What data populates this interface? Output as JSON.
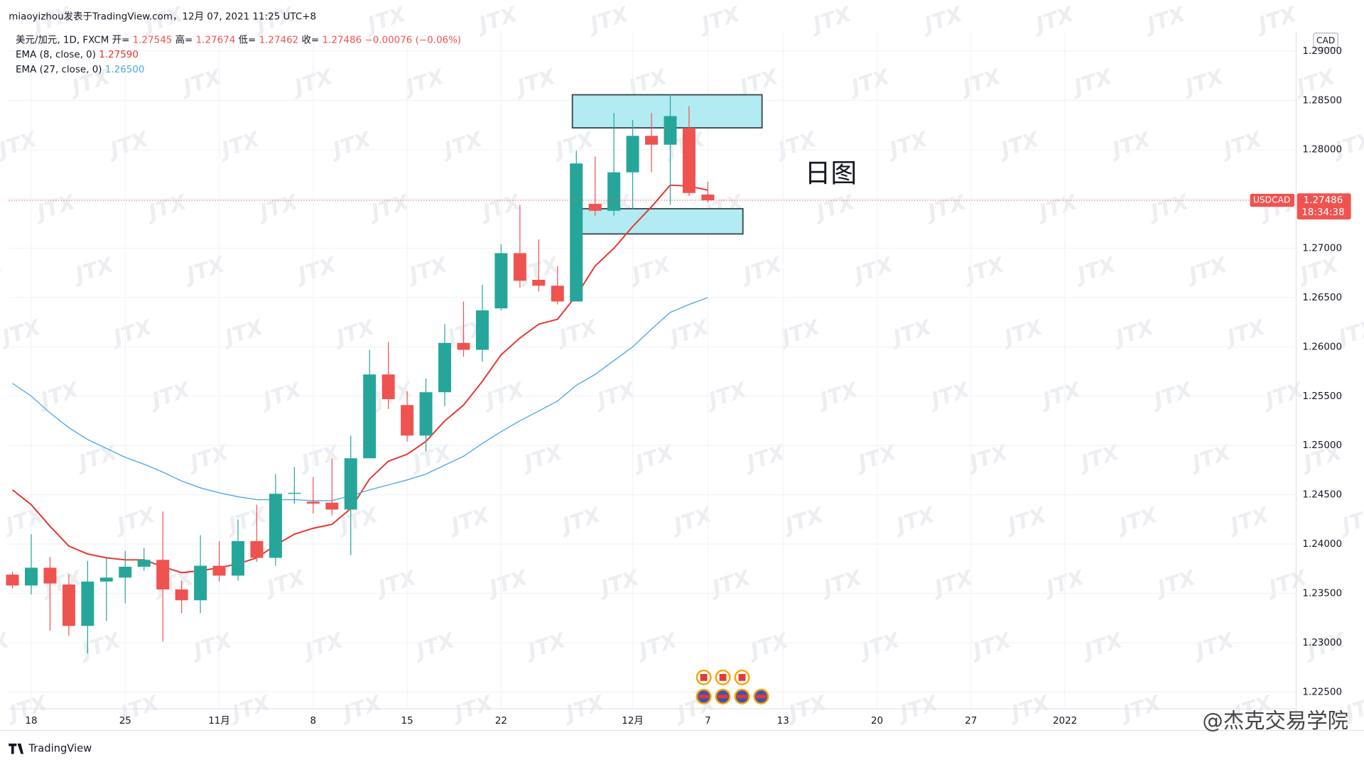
{
  "header": {
    "text": "miaoyizhou发表于TradingView.com，12月 07, 2021 11:25 UTC+8"
  },
  "chart_data": {
    "type": "candlestick",
    "symbol": "美元/加元, 1D, FXCM",
    "legend_labels": {
      "open": "开=",
      "high": "高=",
      "low": "低=",
      "close": "收="
    },
    "change": "−0.00076 (−0.06%)",
    "currency": "CAD",
    "price_label": {
      "symbol": "USDCAD",
      "countdown": "18:34:38"
    },
    "annotation": "日图",
    "up_color": "#26a69a",
    "down_color": "#ef5350",
    "open": [
      1.2369,
      1.2358,
      1.2376,
      1.2359,
      1.2317,
      1.2362,
      1.2366,
      1.2377,
      1.2384,
      1.2354,
      1.2343,
      1.2378,
      1.2368,
      1.2403,
      1.2386,
      1.2451,
      1.2443,
      1.2442,
      1.2435,
      1.2487,
      1.2572,
      1.2541,
      1.251,
      1.2554,
      1.2604,
      1.2597,
      1.2639,
      1.2695,
      1.2668,
      1.2662,
      1.2646,
      1.2745,
      1.2738,
      1.2777,
      1.2814,
      1.2805,
      1.2822,
      1.27545
    ],
    "high": [
      1.2372,
      1.241,
      1.2387,
      1.2369,
      1.2383,
      1.2387,
      1.2393,
      1.2396,
      1.2433,
      1.2363,
      1.2409,
      1.2403,
      1.2425,
      1.244,
      1.2471,
      1.2478,
      1.2468,
      1.2487,
      1.251,
      1.2597,
      1.2605,
      1.2555,
      1.2568,
      1.2623,
      1.2646,
      1.2663,
      1.2704,
      1.2744,
      1.2709,
      1.2682,
      1.2799,
      1.2793,
      1.2837,
      1.283,
      1.2837,
      1.2856,
      1.2844,
      1.27674
    ],
    "low": [
      1.2355,
      1.2349,
      1.2312,
      1.2307,
      1.2289,
      1.2322,
      1.234,
      1.2373,
      1.2301,
      1.233,
      1.233,
      1.2362,
      1.2363,
      1.2382,
      1.2378,
      1.2441,
      1.2431,
      1.2429,
      1.2389,
      1.2487,
      1.2537,
      1.2504,
      1.2494,
      1.254,
      1.259,
      1.2585,
      1.2637,
      1.266,
      1.2656,
      1.2643,
      1.2646,
      1.2733,
      1.2733,
      1.274,
      1.2777,
      1.2744,
      1.2753,
      1.27462
    ],
    "close": [
      1.2358,
      1.2376,
      1.236,
      1.2317,
      1.2362,
      1.2366,
      1.2377,
      1.2384,
      1.2354,
      1.2343,
      1.2378,
      1.2368,
      1.2403,
      1.2386,
      1.2451,
      1.2452,
      1.2441,
      1.2435,
      1.2487,
      1.2572,
      1.2547,
      1.251,
      1.2554,
      1.2604,
      1.2597,
      1.2637,
      1.2695,
      1.2667,
      1.2662,
      1.2646,
      1.2786,
      1.2738,
      1.2777,
      1.2814,
      1.2805,
      1.2834,
      1.2756,
      1.27486
    ],
    "series": [
      {
        "name": "EMA (8, close, 0)",
        "color": "#e8332c",
        "last_label": "1.27590",
        "values": [
          1.2455,
          1.244,
          1.2418,
          1.2398,
          1.239,
          1.2386,
          1.2384,
          1.2384,
          1.2377,
          1.2371,
          1.2373,
          1.2376,
          1.238,
          1.2386,
          1.2399,
          1.241,
          1.2416,
          1.242,
          1.2436,
          1.2466,
          1.2484,
          1.2491,
          1.2504,
          1.2525,
          1.2541,
          1.2565,
          1.2592,
          1.2609,
          1.2623,
          1.2628,
          1.2652,
          1.2682,
          1.27,
          1.2722,
          1.2742,
          1.2764,
          1.2763,
          1.2759
        ]
      },
      {
        "name": "EMA (27, close, 0)",
        "color": "#4ea8e4",
        "last_label": "1.26500",
        "values": [
          1.2563,
          1.255,
          1.2533,
          1.2518,
          1.2506,
          1.2497,
          1.2488,
          1.2481,
          1.2473,
          1.2464,
          1.2457,
          1.2452,
          1.2448,
          1.2445,
          1.2445,
          1.2445,
          1.2444,
          1.2444,
          1.2449,
          1.2455,
          1.246,
          1.2465,
          1.2471,
          1.248,
          1.2489,
          1.2502,
          1.2514,
          1.2525,
          1.2535,
          1.2545,
          1.2561,
          1.2572,
          1.2586,
          1.26,
          1.2618,
          1.2635,
          1.2643,
          1.265
        ]
      }
    ],
    "xlim": [
      -0.2,
      68.3
    ],
    "xticks": [
      {
        "value": 1,
        "label": "18"
      },
      {
        "value": 6,
        "label": "25"
      },
      {
        "value": 11,
        "label": "11月"
      },
      {
        "value": 16,
        "label": "8"
      },
      {
        "value": 21,
        "label": "15"
      },
      {
        "value": 26,
        "label": "22"
      },
      {
        "value": 33,
        "label": "12月"
      },
      {
        "value": 37,
        "label": "7"
      },
      {
        "value": 41,
        "label": "13"
      },
      {
        "value": 46,
        "label": "20"
      },
      {
        "value": 51,
        "label": "27"
      },
      {
        "value": 56,
        "label": "2022"
      }
    ],
    "ylim": [
      1.2233,
      1.292
    ],
    "yticks": [
      {
        "value": 1.225,
        "label": "1.22500"
      },
      {
        "value": 1.23,
        "label": "1.23000"
      },
      {
        "value": 1.235,
        "label": "1.23500"
      },
      {
        "value": 1.24,
        "label": "1.24000"
      },
      {
        "value": 1.245,
        "label": "1.24500"
      },
      {
        "value": 1.25,
        "label": "1.25000"
      },
      {
        "value": 1.255,
        "label": "1.25500"
      },
      {
        "value": 1.26,
        "label": "1.26000"
      },
      {
        "value": 1.265,
        "label": "1.26500"
      },
      {
        "value": 1.27,
        "label": "1.27000"
      },
      {
        "value": 1.275,
        "label": "1.27500"
      },
      {
        "value": 1.28,
        "label": "1.28000"
      },
      {
        "value": 1.285,
        "label": "1.28500"
      },
      {
        "value": 1.29,
        "label": "1.29000"
      }
    ],
    "grid": true
  },
  "footer": {
    "brand": "TradingView",
    "watermark": "@杰克交易学院",
    "tile": "JTX"
  }
}
